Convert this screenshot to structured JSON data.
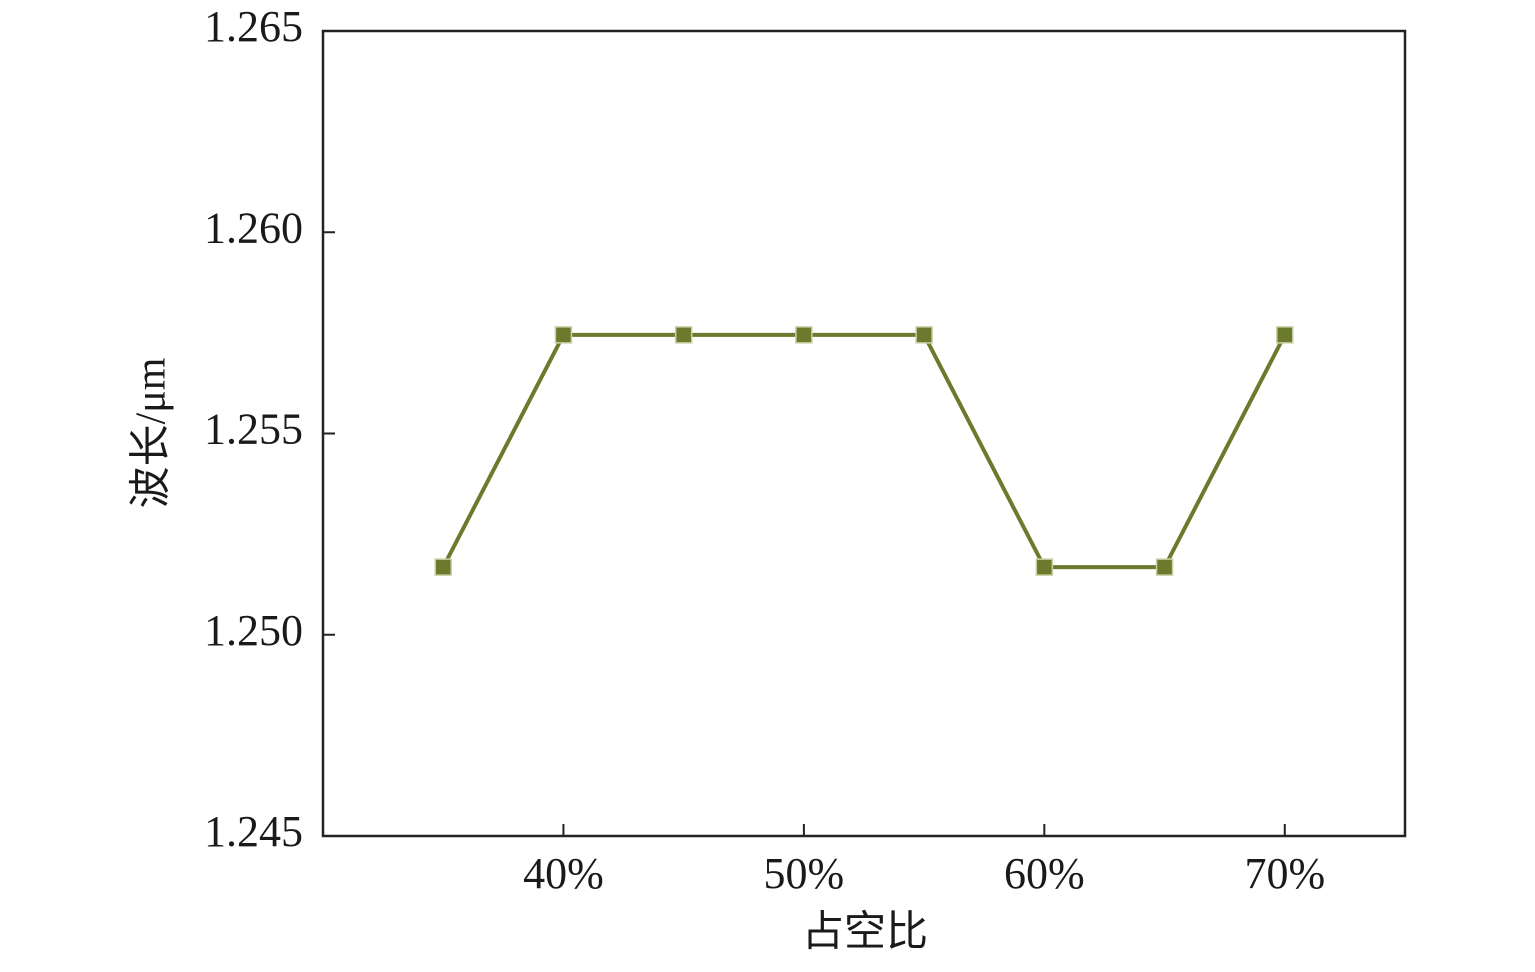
{
  "chart_data": {
    "type": "line",
    "x_label": "占空比",
    "y_label": "波长/μm",
    "x": [
      35,
      40,
      45,
      50,
      55,
      60,
      65,
      70
    ],
    "series": [
      {
        "color": "#6b7a2c",
        "values": [
          1.25168,
          1.25745,
          1.25745,
          1.25745,
          1.25745,
          1.25168,
          1.25168,
          1.25745
        ]
      }
    ],
    "xlim": [
      30,
      75
    ],
    "xticks": [
      {
        "value": 40,
        "label": "40%"
      },
      {
        "value": 50,
        "label": "50%"
      },
      {
        "value": 60,
        "label": "60%"
      },
      {
        "value": 70,
        "label": "70%"
      }
    ],
    "ylim": [
      1.245,
      1.265
    ],
    "yticks": [
      1.245,
      {
        "value": 1.25,
        "label": "1.250"
      },
      1.255,
      {
        "value": 1.26,
        "label": "1.260"
      },
      1.265
    ],
    "grid": false
  }
}
